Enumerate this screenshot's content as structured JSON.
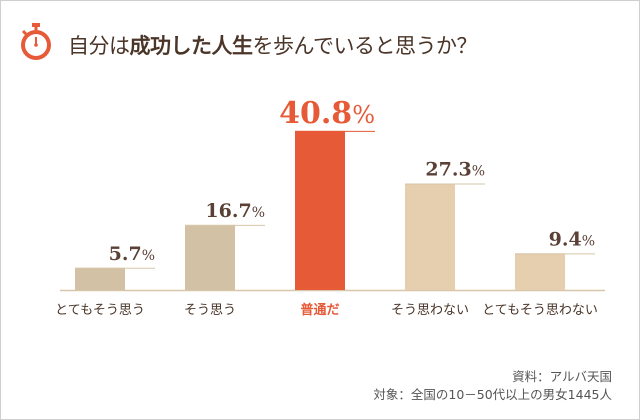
{
  "title_parts": [
    {
      "text": "自分は",
      "bold": false
    },
    {
      "text": "成功した人生",
      "bold": true
    },
    {
      "text": "を歩んでいると思うか？",
      "bold": false
    }
  ],
  "colors": {
    "accent": "#e65a38",
    "bar_a": "#d3c1a5",
    "bar_b": "#e5cfae",
    "text": "#5a4035",
    "line": "#d8c6a8"
  },
  "chart_data": {
    "type": "bar",
    "title": "自分は成功した人生を歩んでいると思うか？",
    "categories": [
      "とてもそう思う",
      "そう思う",
      "普通だ",
      "そう思わない",
      "とてもそう思わない"
    ],
    "values": [
      5.7,
      16.7,
      40.8,
      27.3,
      9.4
    ],
    "unit": "%",
    "highlight_index": 2,
    "ylim": [
      0,
      50
    ],
    "grid": false,
    "xlabel": "",
    "ylabel": ""
  },
  "source": {
    "line1": "資料：アルバ天国",
    "line2": "対象：全国の10－50代以上の男女1445人"
  }
}
